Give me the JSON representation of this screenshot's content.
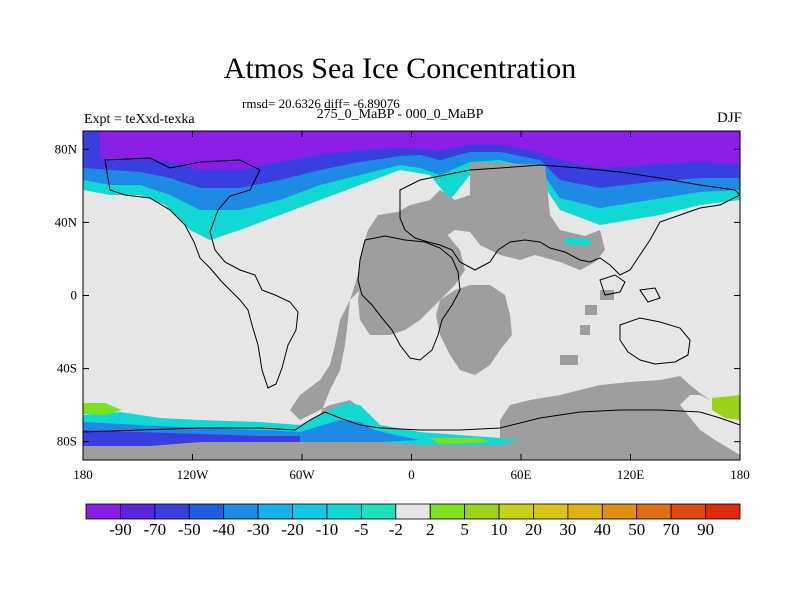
{
  "title": "Atmos Sea Ice Concentration",
  "stats_text": "rmsd= 20.6326 diff= -6.89076",
  "period_text": "275_0_MaBP - 000_0_MaBP",
  "experiment_text": "Expt = teXxd-texka",
  "season_text": "DJF",
  "map": {
    "lat_ticks": [
      "80N",
      "40N",
      "0",
      "40S",
      "80S"
    ],
    "lat_values": [
      80,
      40,
      0,
      -40,
      -80
    ],
    "lon_ticks": [
      "180",
      "120W",
      "60W",
      "0",
      "60E",
      "120E",
      "180"
    ],
    "lon_values": [
      -180,
      -120,
      -60,
      0,
      60,
      120,
      180
    ],
    "lat_range": [
      -90,
      90
    ],
    "lon_range": [
      -180,
      180
    ]
  },
  "colorbar": {
    "labels": [
      "-90",
      "-70",
      "-50",
      "-40",
      "-30",
      "-20",
      "-10",
      "-5",
      "-2",
      "2",
      "5",
      "10",
      "20",
      "30",
      "40",
      "50",
      "70",
      "90"
    ],
    "colors": [
      "#8a1de6",
      "#5a23dc",
      "#3a3ee0",
      "#2060e0",
      "#1e8ae6",
      "#1aaeee",
      "#12c8e6",
      "#12d8d4",
      "#20e0b8",
      "#e6e6e6",
      "#7be01e",
      "#9ad21a",
      "#c6d21a",
      "#d8c418",
      "#e0b018",
      "#e08e14",
      "#e06e12",
      "#e04a10",
      "#e02a0c"
    ]
  },
  "colors": {
    "land": "#9e9e9e",
    "no_change": "#e6e6e6",
    "coast": "#000000"
  }
}
